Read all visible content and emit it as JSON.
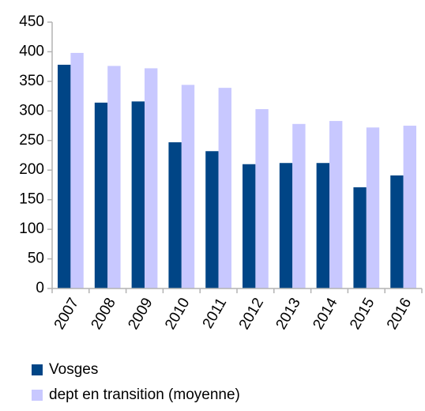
{
  "chart_data": {
    "type": "bar",
    "categories": [
      "2007",
      "2008",
      "2009",
      "2010",
      "2011",
      "2012",
      "2013",
      "2014",
      "2015",
      "2016"
    ],
    "series": [
      {
        "name": "Vosges",
        "color": "#004586",
        "values": [
          378,
          314,
          316,
          247,
          232,
          210,
          212,
          212,
          171,
          191
        ]
      },
      {
        "name": "dept en transition (moyenne)",
        "color": "#c8c8ff",
        "values": [
          398,
          376,
          372,
          344,
          339,
          303,
          278,
          283,
          272,
          275
        ]
      }
    ],
    "ylim": [
      0,
      450
    ],
    "yticks": [
      0,
      50,
      100,
      150,
      200,
      250,
      300,
      350,
      400,
      450
    ],
    "legend": "bottom-left"
  }
}
